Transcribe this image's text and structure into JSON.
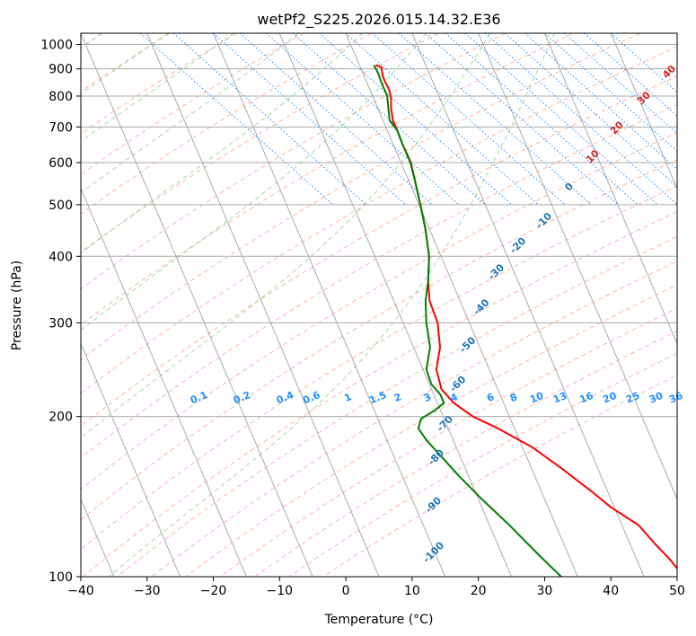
{
  "chart_data": {
    "type": "line",
    "title": "wetPf2_S225.2026.015.14.32.E36",
    "xlabel": "Temperature (°C)",
    "ylabel": "Pressure (hPa)",
    "xlim": [
      -40,
      50
    ],
    "ylim": [
      1050,
      100
    ],
    "y_scale": "log",
    "x_ticks": [
      "−40",
      "−30",
      "−20",
      "−10",
      "0",
      "10",
      "20",
      "30",
      "40",
      "50"
    ],
    "y_ticks": [
      "100",
      "200",
      "300",
      "400",
      "500",
      "600",
      "700",
      "800",
      "900",
      "1000"
    ],
    "grid": true,
    "colors": {
      "temperature": "#ff0000",
      "dewpoint": "#008000",
      "isotherm": "#aaaaaa",
      "dry_adiabat": "#ff9a80",
      "moist_adiabat": "#90cc90",
      "mixing_ratio": "#1e90ff",
      "height_labels": "#1f77b4",
      "hot_labels": "#d62728"
    },
    "series": [
      {
        "points": [
          {
            "p": 915,
            "t": 2.5
          },
          {
            "p": 905,
            "t": 3.2
          },
          {
            "p": 890,
            "t": 3.0
          },
          {
            "p": 870,
            "t": 2.8
          },
          {
            "p": 850,
            "t": 2.8
          },
          {
            "p": 820,
            "t": 2.9
          },
          {
            "p": 790,
            "t": 2.6
          },
          {
            "p": 760,
            "t": 2.0
          },
          {
            "p": 720,
            "t": 1.5
          },
          {
            "p": 690,
            "t": 1.5
          },
          {
            "p": 650,
            "t": 1.4
          },
          {
            "p": 600,
            "t": 1.5
          },
          {
            "p": 560,
            "t": 1.0
          },
          {
            "p": 500,
            "t": 0.2
          },
          {
            "p": 450,
            "t": -0.6
          },
          {
            "p": 400,
            "t": -1.8
          },
          {
            "p": 360,
            "t": -3.5
          },
          {
            "p": 330,
            "t": -4.6
          },
          {
            "p": 300,
            "t": -4.8
          },
          {
            "p": 270,
            "t": -6.0
          },
          {
            "p": 245,
            "t": -8.0
          },
          {
            "p": 225,
            "t": -8.5
          },
          {
            "p": 212,
            "t": -7.5
          },
          {
            "p": 200,
            "t": -5.5
          },
          {
            "p": 190,
            "t": -2.5
          },
          {
            "p": 175,
            "t": 1.5
          },
          {
            "p": 160,
            "t": 4.5
          },
          {
            "p": 145,
            "t": 7.5
          },
          {
            "p": 135,
            "t": 9.5
          },
          {
            "p": 125,
            "t": 12.5
          },
          {
            "p": 115,
            "t": 13.8
          },
          {
            "p": 108,
            "t": 15.0
          },
          {
            "p": 100,
            "t": 16.0
          }
        ]
      },
      {
        "points": [
          {
            "p": 915,
            "t": 2.2
          },
          {
            "p": 880,
            "t": 2.3
          },
          {
            "p": 850,
            "t": 2.2
          },
          {
            "p": 800,
            "t": 2.2
          },
          {
            "p": 760,
            "t": 1.6
          },
          {
            "p": 720,
            "t": 1.0
          },
          {
            "p": 690,
            "t": 1.5
          },
          {
            "p": 650,
            "t": 1.4
          },
          {
            "p": 600,
            "t": 1.4
          },
          {
            "p": 560,
            "t": 1.0
          },
          {
            "p": 500,
            "t": 0.2
          },
          {
            "p": 450,
            "t": -0.6
          },
          {
            "p": 400,
            "t": -1.8
          },
          {
            "p": 360,
            "t": -3.5
          },
          {
            "p": 330,
            "t": -5.2
          },
          {
            "p": 300,
            "t": -6.5
          },
          {
            "p": 270,
            "t": -7.5
          },
          {
            "p": 245,
            "t": -9.5
          },
          {
            "p": 230,
            "t": -9.7
          },
          {
            "p": 220,
            "t": -9.0
          },
          {
            "p": 212,
            "t": -9.0
          },
          {
            "p": 205,
            "t": -11.0
          },
          {
            "p": 198,
            "t": -13.5
          },
          {
            "p": 190,
            "t": -14.5
          },
          {
            "p": 180,
            "t": -14.0
          },
          {
            "p": 170,
            "t": -13.0
          },
          {
            "p": 155,
            "t": -11.5
          },
          {
            "p": 140,
            "t": -9.5
          },
          {
            "p": 125,
            "t": -7.0
          },
          {
            "p": 110,
            "t": -4.5
          },
          {
            "p": 100,
            "t": -2.5
          }
        ]
      }
    ],
    "height_labels": [
      {
        "text": "-100",
        "p": 110,
        "t": -20.0
      },
      {
        "text": "-90",
        "p": 135,
        "t": -17.0
      },
      {
        "text": "-80",
        "p": 166,
        "t": -13.5
      },
      {
        "text": "-70",
        "p": 192,
        "t": -10.0
      },
      {
        "text": "-60",
        "p": 228,
        "t": -5.5
      },
      {
        "text": "-50",
        "p": 270,
        "t": -1.5
      },
      {
        "text": "-40",
        "p": 318,
        "t": 3.0
      },
      {
        "text": "-30",
        "p": 370,
        "t": 7.5
      },
      {
        "text": "-20",
        "p": 415,
        "t": 12.5
      },
      {
        "text": "-10",
        "p": 462,
        "t": 18.0
      },
      {
        "text": "0",
        "p": 535,
        "t": 24.0
      }
    ],
    "hot_labels": [
      {
        "text": "10",
        "p": 610,
        "t": 29.5
      },
      {
        "text": "20",
        "p": 690,
        "t": 35.0
      },
      {
        "text": "30",
        "p": 785,
        "t": 41.0
      },
      {
        "text": "40",
        "p": 880,
        "t": 46.5
      }
    ],
    "mixing_ratio_labels": [
      {
        "text": "0.1",
        "t": -22.0
      },
      {
        "text": "0.2",
        "t": -15.5
      },
      {
        "text": "0.4",
        "t": -9.0
      },
      {
        "text": "0.6",
        "t": -5.0
      },
      {
        "text": "1",
        "t": 0.5
      },
      {
        "text": "1.5",
        "t": 5.0
      },
      {
        "text": "2",
        "t": 8.0
      },
      {
        "text": "3",
        "t": 12.5
      },
      {
        "text": "4",
        "t": 16.5
      },
      {
        "text": "6",
        "t": 22.0
      },
      {
        "text": "8",
        "t": 25.5
      },
      {
        "text": "10",
        "t": 29.0
      },
      {
        "text": "13",
        "t": 32.5
      },
      {
        "text": "16",
        "t": 36.5
      },
      {
        "text": "20",
        "t": 40.0
      },
      {
        "text": "25",
        "t": 43.5
      },
      {
        "text": "30",
        "t": 47.0
      },
      {
        "text": "36",
        "t": 50.0
      }
    ],
    "mixing_ratio_line_temps": [
      -31,
      -26,
      -20,
      -16,
      -12,
      -8,
      -4,
      0,
      4,
      8,
      12,
      15,
      18,
      21,
      24,
      27,
      30,
      33,
      36,
      40
    ],
    "isotherm_range": [
      -150,
      60
    ],
    "dry_adiabat_range": [
      -60,
      180
    ],
    "moist_adiabat_temps": [
      -40,
      -30,
      -20,
      -10,
      0,
      10,
      20,
      30
    ]
  }
}
